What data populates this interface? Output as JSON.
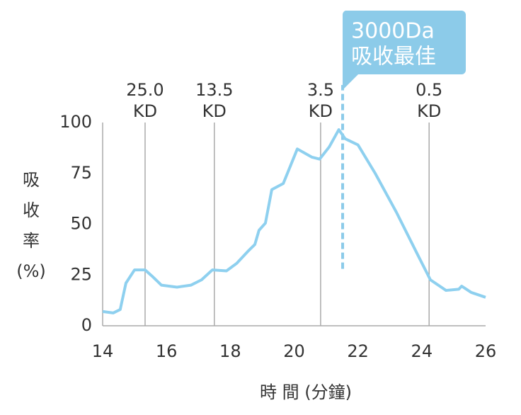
{
  "chart_data": {
    "type": "line",
    "xlabel": "時 間 (分鐘)",
    "ylabel": [
      "吸",
      "收",
      "率",
      "(%)"
    ],
    "xlim": [
      14,
      26
    ],
    "xticks": [
      14,
      16,
      18,
      20,
      22,
      24,
      26
    ],
    "ylim": [
      0,
      100
    ],
    "yticks": [
      0,
      25,
      50,
      75,
      100
    ],
    "series": [
      {
        "color": "#8ed0ef",
        "x": [
          14,
          14.33,
          14.55,
          14.73,
          15,
          15.33,
          15.55,
          15.84,
          16.33,
          16.77,
          17.1,
          17.44,
          17.88,
          18.2,
          18.55,
          18.77,
          18.9,
          19.1,
          19.3,
          19.66,
          20.1,
          20.55,
          20.8,
          21.1,
          21.4,
          21.6,
          22,
          22.54,
          23.2,
          23.87,
          24.27,
          24.76,
          25.16,
          25.25,
          25.55,
          26
        ],
        "values": [
          7,
          6.3,
          8,
          21,
          27.5,
          27.5,
          24.4,
          20,
          19,
          20,
          22.6,
          27.5,
          27,
          30.7,
          36.6,
          40,
          47,
          50.5,
          67,
          70,
          87,
          83,
          82,
          88,
          96.5,
          92,
          89,
          75,
          56,
          35,
          22.6,
          17.4,
          18,
          19.5,
          16.4,
          14
        ]
      }
    ],
    "reference_lines": [
      {
        "x": 15.33,
        "label": [
          "25.0",
          "KD"
        ]
      },
      {
        "x": 17.5,
        "label": [
          "13.5",
          "KD"
        ]
      },
      {
        "x": 20.83,
        "label": [
          "3.5",
          "KD"
        ]
      },
      {
        "x": 24.23,
        "label": [
          "0.5",
          "KD"
        ]
      }
    ],
    "callout": {
      "x": 21.52,
      "y_from": 28,
      "label": [
        "3000Da",
        "吸收最佳"
      ],
      "color": "#8ccbe9"
    }
  }
}
